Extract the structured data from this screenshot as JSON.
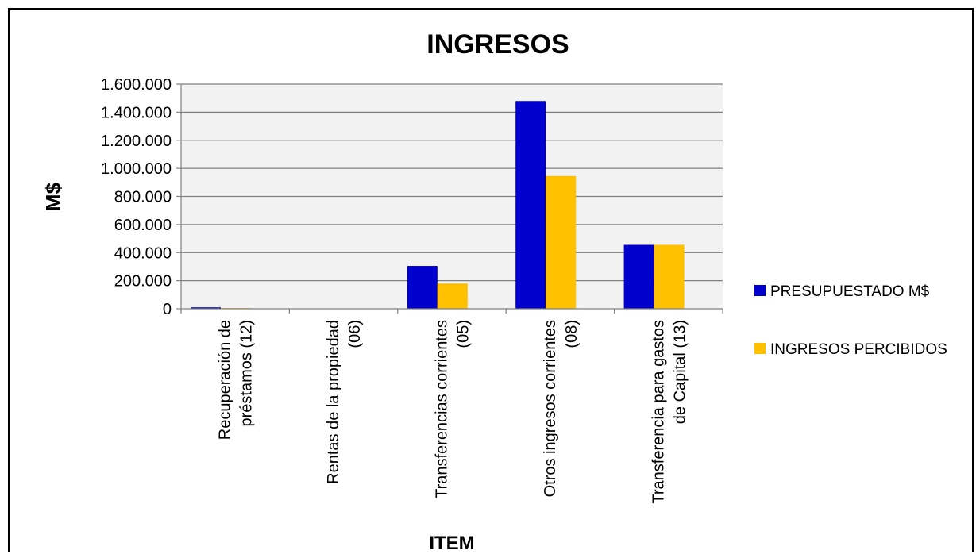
{
  "chart_data": {
    "type": "bar",
    "title": "INGRESOS",
    "xlabel": "ITEM",
    "ylabel": "M$",
    "ylim": [
      0,
      1600000
    ],
    "yticks": [
      0,
      200000,
      400000,
      600000,
      800000,
      1000000,
      1200000,
      1400000,
      1600000
    ],
    "ytick_labels": [
      "0",
      "200.000",
      "400.000",
      "600.000",
      "800.000",
      "1.000.000",
      "1.200.000",
      "1.400.000",
      "1.600.000"
    ],
    "categories": [
      [
        "Recuperación de",
        "préstamos (12)"
      ],
      [
        "Rentas de la propiedad",
        "(06)"
      ],
      [
        "Transferencias corrientes",
        "(05)"
      ],
      [
        "Otros ingresos corrientes",
        "(08)"
      ],
      [
        "Transferencia para gastos",
        "de Capital (13)"
      ]
    ],
    "series": [
      {
        "name": "PRESUPUESTADO M$",
        "color": "#0000CC",
        "values": [
          10000,
          0,
          305000,
          1480000,
          455000
        ]
      },
      {
        "name": "INGRESOS PERCIBIDOS",
        "color": "#FFC000",
        "values": [
          5000,
          0,
          180000,
          945000,
          455000
        ]
      }
    ],
    "grid": true,
    "plot_background": "#F2F2F2",
    "legend_position": "right"
  }
}
